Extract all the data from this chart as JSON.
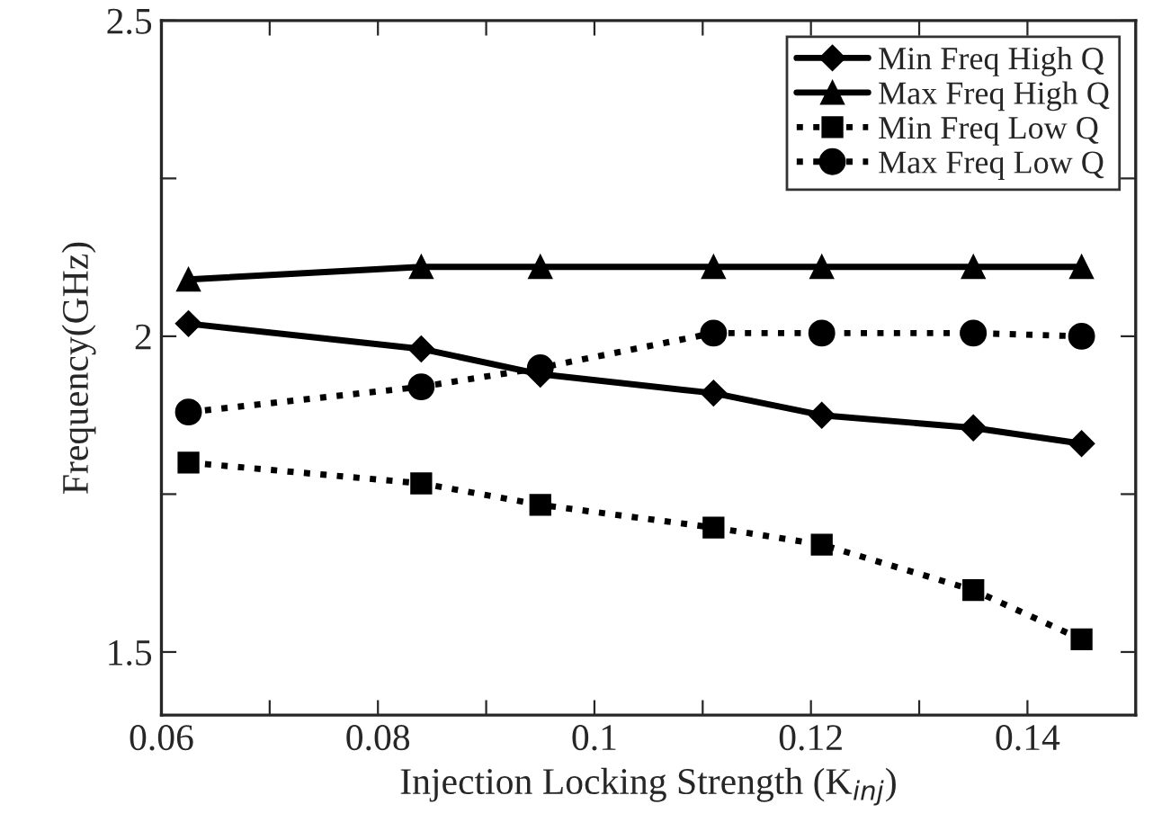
{
  "chart_data": {
    "type": "line",
    "xlabel": "Injection Locking Strength (K$_{inj}$)",
    "ylabel": "Frequency(GHz)",
    "x": [
      0.0625,
      0.084,
      0.095,
      0.111,
      0.121,
      0.135,
      0.145
    ],
    "series": [
      {
        "name": "Min Freq High Q",
        "color": "#000000",
        "marker": "diamond",
        "line_style": "solid",
        "values": [
          2.02,
          1.98,
          1.94,
          1.91,
          1.875,
          1.855,
          1.83
        ]
      },
      {
        "name": "Max Freq High Q",
        "color": "#000000",
        "marker": "triangle",
        "line_style": "solid",
        "values": [
          2.09,
          2.11,
          2.11,
          2.11,
          2.11,
          2.11,
          2.11
        ]
      },
      {
        "name": "Min Freq Low Q",
        "color": "#000000",
        "marker": "square",
        "line_style": "dotted",
        "values": [
          1.8,
          1.767,
          1.733,
          1.697,
          1.67,
          1.598,
          1.52
        ]
      },
      {
        "name": "Max Freq Low Q",
        "color": "#000000",
        "marker": "circle",
        "line_style": "dotted",
        "values": [
          1.88,
          1.92,
          1.95,
          2.005,
          2.005,
          2.005,
          2.0
        ]
      }
    ],
    "xlim": [
      0.06,
      0.15
    ],
    "ylim": [
      1.4,
      2.5
    ],
    "xticks": [
      {
        "value": 0.06,
        "label": "0.06"
      },
      {
        "value": 0.07,
        "label": null
      },
      {
        "value": 0.08,
        "label": "0.08"
      },
      {
        "value": 0.09,
        "label": null
      },
      {
        "value": 0.1,
        "label": "0.1"
      },
      {
        "value": 0.11,
        "label": null
      },
      {
        "value": 0.12,
        "label": "0.12"
      },
      {
        "value": 0.13,
        "label": null
      },
      {
        "value": 0.14,
        "label": "0.14"
      }
    ],
    "yticks": [
      1.5,
      {
        "value": 1.75,
        "label": null
      },
      2,
      {
        "value": 2.25,
        "label": null
      },
      2.5
    ],
    "legend": "top right"
  }
}
